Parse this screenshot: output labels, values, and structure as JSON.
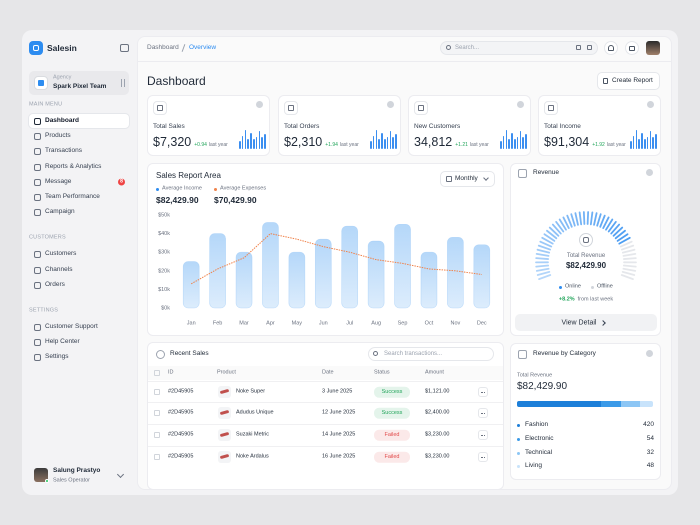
{
  "sidebar": {
    "brand": "Salesin",
    "agency": {
      "label": "Agency",
      "name": "Spark Pixel Team"
    },
    "sections": [
      {
        "title": "MAIN MENU",
        "items": [
          "Dashboard",
          "Products",
          "Transactions",
          "Reports & Analytics",
          "Message",
          "Team Performance",
          "Campaign"
        ]
      },
      {
        "title": "CUSTOMERS",
        "items": [
          "Customers",
          "Channels",
          "Orders"
        ]
      },
      {
        "title": "SETTINGS",
        "items": [
          "Customer Support",
          "Help Center",
          "Settings"
        ]
      }
    ],
    "message_badge": "8",
    "user": {
      "name": "Salung Prastyo",
      "role": "Sales Operator"
    }
  },
  "header": {
    "breadcrumb": [
      "Dashboard",
      "Overview"
    ],
    "search_placeholder": "Search..."
  },
  "page": {
    "title": "Dashboard",
    "create_button": "Create Report"
  },
  "stats": [
    {
      "label": "Total Sales",
      "value": "$7,320",
      "change": "+0.94",
      "change_note": "last year"
    },
    {
      "label": "Total Orders",
      "value": "$2,310",
      "change": "+1.94",
      "change_note": "last year"
    },
    {
      "label": "New Customers",
      "value": "34,812",
      "change": "+1.21",
      "change_note": "last year"
    },
    {
      "label": "Total Income",
      "value": "$91,304",
      "change": "+1.92",
      "change_note": "last year"
    }
  ],
  "sales_report": {
    "type": "bar",
    "title": "Sales Report Area",
    "period": "Monthly",
    "categories": [
      "Jan",
      "Feb",
      "Mar",
      "Apr",
      "May",
      "Jun",
      "Jul",
      "Aug",
      "Sep",
      "Oct",
      "Nov",
      "Dec"
    ],
    "series": [
      {
        "name": "Average Income",
        "total": "$82,429.90",
        "color": "#9ccaf7",
        "values": [
          25,
          40,
          30,
          46,
          30,
          37,
          44,
          36,
          45,
          30,
          38,
          34
        ]
      },
      {
        "name": "Average Expenses",
        "total": "$70,429.90",
        "color": "#f0824a",
        "type": "line",
        "values": [
          13,
          21,
          27,
          40,
          37,
          33,
          30,
          26,
          24,
          21,
          20,
          18
        ]
      }
    ],
    "ylim": [
      0,
      50
    ],
    "yticks": [
      {
        "value": 0,
        "label": "$0k"
      },
      {
        "value": 10,
        "label": "$10k"
      },
      {
        "value": 20,
        "label": "$20k"
      },
      {
        "value": 30,
        "label": "$30k"
      },
      {
        "value": 40,
        "label": "$40k"
      },
      {
        "value": 50,
        "label": "$50k"
      }
    ]
  },
  "revenue": {
    "title": "Revenue",
    "total_label": "Total Revenue",
    "total": "$82,429.90",
    "legend": [
      "Online",
      "Offline"
    ],
    "change": "+8.2%",
    "change_note": "from last week",
    "button": "View Detail"
  },
  "recent_sales": {
    "title": "Recent Sales",
    "search_placeholder": "Search transactions...",
    "columns": [
      "ID",
      "Product",
      "Date",
      "Status",
      "Amount"
    ],
    "rows": [
      {
        "id": "#2D45905",
        "product": "Noke Super",
        "date": "3 June 2025",
        "status": "Success",
        "status_color": "#22a55b",
        "amount": "$1,121.00"
      },
      {
        "id": "#2D45905",
        "product": "Adudus Unique",
        "date": "12 June 2025",
        "status": "Success",
        "status_color": "#22a55b",
        "amount": "$2,400.00"
      },
      {
        "id": "#2D45905",
        "product": "Suzaki Metric",
        "date": "14 June 2025",
        "status": "Failed",
        "status_color": "#e24b4b",
        "amount": "$3,230.00"
      },
      {
        "id": "#2D45905",
        "product": "Noke Ardalus",
        "date": "16 June 2025",
        "status": "Failed",
        "status_color": "#e24b4b",
        "amount": "$3,230.00"
      }
    ]
  },
  "revenue_by_category": {
    "title": "Revenue by Category",
    "total_label": "Total Revenue",
    "total": "$82,429.90",
    "categories": [
      {
        "name": "Fashion",
        "value": 420,
        "color": "#1d7fd9"
      },
      {
        "name": "Electronic",
        "value": 54,
        "color": "#3b9ae8"
      },
      {
        "name": "Technical",
        "value": 32,
        "color": "#8cc6f5"
      },
      {
        "name": "Living",
        "value": 48,
        "color": "#c8e3fb"
      }
    ]
  }
}
